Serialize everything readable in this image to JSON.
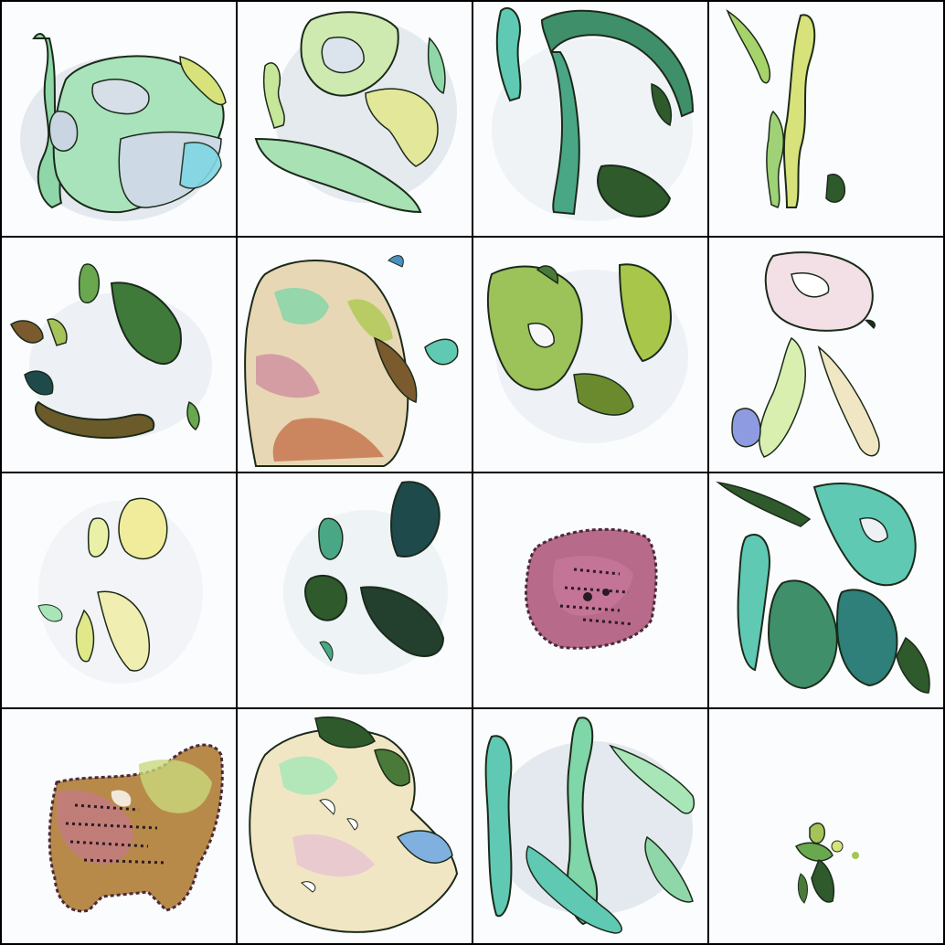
{
  "grid": {
    "rows": 4,
    "columns": 4,
    "background": "#000000",
    "tile_background": "#fbfcfd"
  },
  "palette": {
    "teal": "#5fc9b4",
    "mint": "#a8e6b8",
    "yellow_green": "#d8e27a",
    "olive": "#7b8a2e",
    "dark_green": "#2e5a2c",
    "deep_teal": "#1f4a4c",
    "pink": "#c7779a",
    "mauve": "#a35a7a",
    "cream": "#f1e6c4",
    "sky": "#7fd6e4",
    "haze": "#cfd8e2",
    "outline": "#1b2a1a"
  },
  "tiles": [
    {
      "id": 1,
      "style": "green-teal ring blob"
    },
    {
      "id": 2,
      "style": "yellow-green loops"
    },
    {
      "id": 3,
      "style": "teal arch strokes"
    },
    {
      "id": 4,
      "style": "thin yellow vertical strokes"
    },
    {
      "id": 5,
      "style": "scattered dark green fragments"
    },
    {
      "id": 6,
      "style": "multicolor textured mass"
    },
    {
      "id": 7,
      "style": "olive green blobs"
    },
    {
      "id": 8,
      "style": "pastel pink strokes"
    },
    {
      "id": 9,
      "style": "pale yellow curls"
    },
    {
      "id": 10,
      "style": "dark green leaves"
    },
    {
      "id": 11,
      "style": "pink textured patch"
    },
    {
      "id": 12,
      "style": "teal leaf clusters"
    },
    {
      "id": 13,
      "style": "patchy pink-olive mass"
    },
    {
      "id": 14,
      "style": "pastel swirl mass"
    },
    {
      "id": 15,
      "style": "teal vertical ribbons"
    },
    {
      "id": 16,
      "style": "small dark sprig"
    }
  ]
}
